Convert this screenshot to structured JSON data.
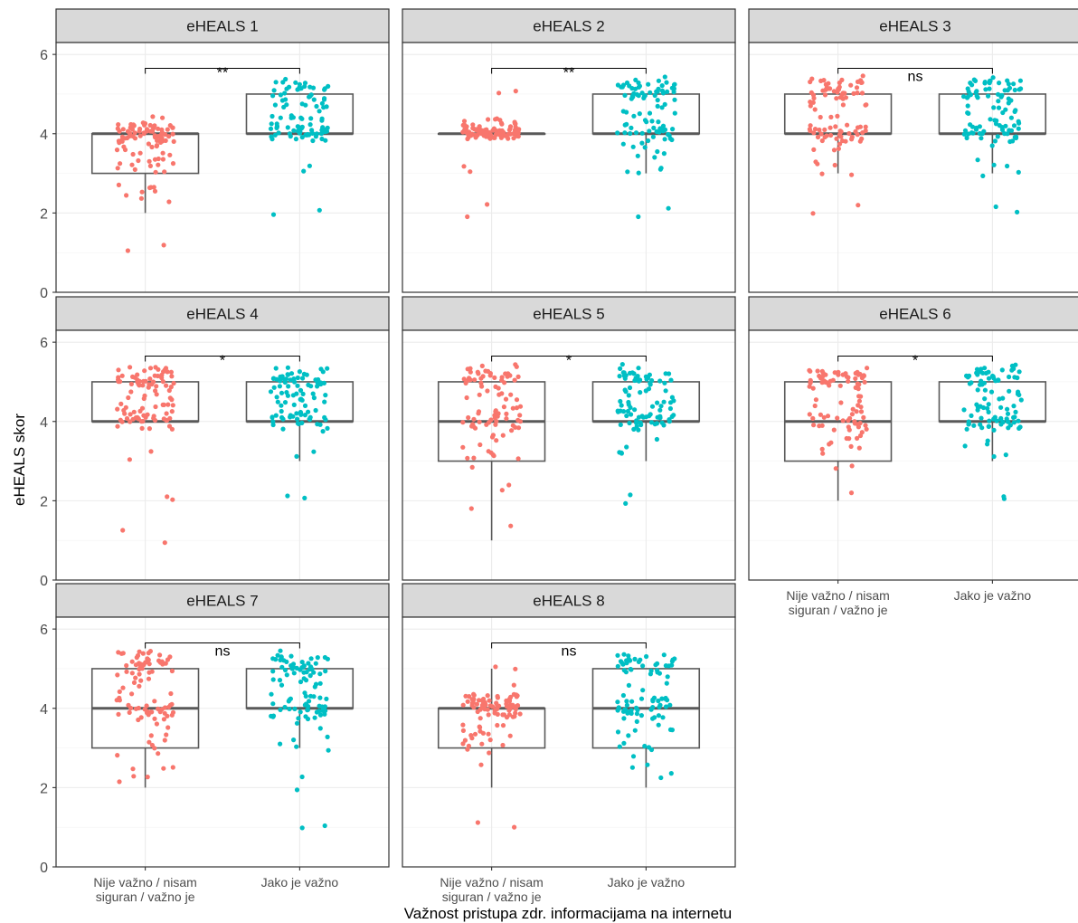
{
  "chart_data": {
    "type": "box",
    "ylabel": "eHEALS skor",
    "xlabel": "Važnost pristupa zdr. informacijama na internetu",
    "ylim": [
      0,
      6.3
    ],
    "yticks": [
      0,
      2,
      4,
      6
    ],
    "grid": "on",
    "legend": "none",
    "categories": [
      "Nije važno / nisam\nsiguran / važno je",
      "Jako je važno"
    ],
    "group_colors": [
      "#F8766D",
      "#00BFC4"
    ],
    "panels": [
      {
        "title": "eHEALS 1",
        "significance": "**",
        "boxes": [
          {
            "min": 2,
            "q1": 3,
            "median": 4,
            "q3": 4,
            "max": 4,
            "outliers": [
              1
            ]
          },
          {
            "min": 4,
            "q1": 4,
            "median": 4,
            "q3": 5,
            "max": 5,
            "outliers": [
              2,
              3
            ]
          }
        ]
      },
      {
        "title": "eHEALS 2",
        "significance": "**",
        "boxes": [
          {
            "min": 4,
            "q1": 4,
            "median": 4,
            "q3": 4,
            "max": 4,
            "outliers": [
              2,
              3,
              5
            ]
          },
          {
            "min": 3,
            "q1": 4,
            "median": 4,
            "q3": 5,
            "max": 5,
            "outliers": [
              2
            ]
          }
        ]
      },
      {
        "title": "eHEALS 3",
        "significance": "ns",
        "boxes": [
          {
            "min": 3,
            "q1": 4,
            "median": 4,
            "q3": 5,
            "max": 5,
            "outliers": [
              2
            ]
          },
          {
            "min": 3,
            "q1": 4,
            "median": 4,
            "q3": 5,
            "max": 5,
            "outliers": [
              2
            ]
          }
        ]
      },
      {
        "title": "eHEALS 4",
        "significance": "*",
        "boxes": [
          {
            "min": 4,
            "q1": 4,
            "median": 4,
            "q3": 5,
            "max": 5,
            "outliers": [
              1,
              2,
              3
            ]
          },
          {
            "min": 3,
            "q1": 4,
            "median": 4,
            "q3": 5,
            "max": 5,
            "outliers": [
              2
            ]
          }
        ]
      },
      {
        "title": "eHEALS 5",
        "significance": "*",
        "boxes": [
          {
            "min": 1,
            "q1": 3,
            "median": 4,
            "q3": 5,
            "max": 5,
            "outliers": []
          },
          {
            "min": 3,
            "q1": 4,
            "median": 4,
            "q3": 5,
            "max": 5,
            "outliers": [
              2
            ]
          }
        ]
      },
      {
        "title": "eHEALS 6",
        "significance": "*",
        "boxes": [
          {
            "min": 2,
            "q1": 3,
            "median": 4,
            "q3": 5,
            "max": 5,
            "outliers": []
          },
          {
            "min": 3,
            "q1": 4,
            "median": 4,
            "q3": 5,
            "max": 5,
            "outliers": [
              2
            ]
          }
        ]
      },
      {
        "title": "eHEALS 7",
        "significance": "ns",
        "boxes": [
          {
            "min": 2,
            "q1": 3,
            "median": 4,
            "q3": 5,
            "max": 5,
            "outliers": []
          },
          {
            "min": 3,
            "q1": 4,
            "median": 4,
            "q3": 5,
            "max": 5,
            "outliers": [
              1,
              2
            ]
          }
        ]
      },
      {
        "title": "eHEALS 8",
        "significance": "ns",
        "boxes": [
          {
            "min": 2,
            "q1": 3,
            "median": 4,
            "q3": 4,
            "max": 5,
            "outliers": [
              1
            ]
          },
          {
            "min": 2,
            "q1": 3,
            "median": 4,
            "q3": 5,
            "max": 5,
            "outliers": []
          }
        ]
      }
    ]
  }
}
